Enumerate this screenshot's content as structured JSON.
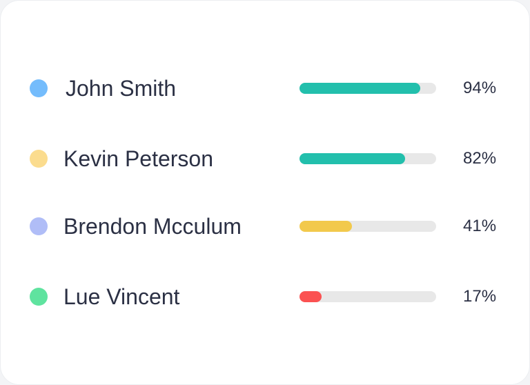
{
  "items": [
    {
      "name": "John Smith",
      "dot_color": "#74bcfc",
      "value": 94,
      "label": "94%",
      "bar_color": "#22bfac"
    },
    {
      "name": "Kevin Peterson",
      "dot_color": "#fbdc8e",
      "value": 82,
      "label": "82%",
      "bar_color": "#22bfac"
    },
    {
      "name": "Brendon Mcculum",
      "dot_color": "#b0bdf7",
      "value": 41,
      "label": "41%",
      "bar_color": "#f2c94c"
    },
    {
      "name": "Lue Vincent",
      "dot_color": "#5fe39f",
      "value": 17,
      "label": "17%",
      "bar_color": "#fb5252"
    }
  ]
}
